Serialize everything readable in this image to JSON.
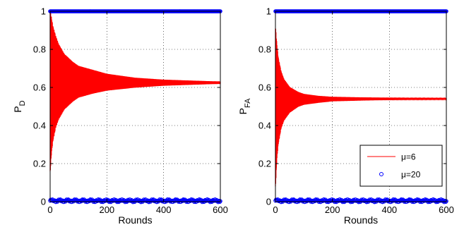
{
  "chart_data": [
    {
      "type": "line",
      "xlabel": "Rounds",
      "ylabel": "P",
      "ylabel_sub": "D",
      "xlim": [
        0,
        600
      ],
      "ylim": [
        0,
        1
      ],
      "xticks": [
        0,
        200,
        400,
        600
      ],
      "yticks": [
        0,
        0.2,
        0.4,
        0.6,
        0.8,
        1
      ],
      "ytick_labels": [
        "0",
        "0.2",
        "0.4",
        "0.6",
        "0.8",
        "1"
      ],
      "grid": true,
      "series": [
        {
          "name": "μ=6",
          "style": "line",
          "color": "#ff0000",
          "envelope": {
            "center": [
              [
                0,
                0.58
              ],
              [
                10,
                0.62
              ],
              [
                50,
                0.63
              ],
              [
                100,
                0.63
              ],
              [
                200,
                0.63
              ],
              [
                300,
                0.625
              ],
              [
                400,
                0.625
              ],
              [
                500,
                0.625
              ],
              [
                600,
                0.625
              ]
            ],
            "upper": [
              [
                0,
                1.0
              ],
              [
                5,
                0.95
              ],
              [
                10,
                0.91
              ],
              [
                20,
                0.86
              ],
              [
                30,
                0.82
              ],
              [
                50,
                0.77
              ],
              [
                80,
                0.73
              ],
              [
                100,
                0.71
              ],
              [
                150,
                0.69
              ],
              [
                200,
                0.67
              ],
              [
                300,
                0.65
              ],
              [
                400,
                0.64
              ],
              [
                500,
                0.635
              ],
              [
                600,
                0.63
              ]
            ],
            "lower": [
              [
                0,
                0.16
              ],
              [
                5,
                0.27
              ],
              [
                10,
                0.33
              ],
              [
                20,
                0.4
              ],
              [
                30,
                0.44
              ],
              [
                50,
                0.49
              ],
              [
                80,
                0.53
              ],
              [
                100,
                0.55
              ],
              [
                150,
                0.57
              ],
              [
                200,
                0.585
              ],
              [
                300,
                0.6
              ],
              [
                400,
                0.61
              ],
              [
                500,
                0.615
              ],
              [
                600,
                0.62
              ]
            ]
          }
        },
        {
          "name": "μ=20",
          "style": "markers",
          "color": "#0000ff",
          "levels": [
            1,
            0.005
          ]
        }
      ]
    },
    {
      "type": "line",
      "xlabel": "Rounds",
      "ylabel": "P",
      "ylabel_sub": "FA",
      "xlim": [
        0,
        600
      ],
      "ylim": [
        0,
        1
      ],
      "xticks": [
        0,
        200,
        400,
        600
      ],
      "yticks": [
        0,
        0.2,
        0.4,
        0.6,
        0.8,
        1
      ],
      "ytick_labels": [
        "0",
        "0.2",
        "0.4",
        "0.6",
        "0.8",
        "1"
      ],
      "grid": true,
      "legend": {
        "position": "bottom-right",
        "entries": [
          "μ=6",
          "μ=20"
        ]
      },
      "series": [
        {
          "name": "μ=6",
          "style": "line",
          "color": "#ff0000",
          "envelope": {
            "center": [
              [
                0,
                0.52
              ],
              [
                10,
                0.54
              ],
              [
                50,
                0.54
              ],
              [
                100,
                0.54
              ],
              [
                200,
                0.54
              ],
              [
                300,
                0.54
              ],
              [
                400,
                0.54
              ],
              [
                500,
                0.54
              ],
              [
                600,
                0.54
              ]
            ],
            "upper": [
              [
                0,
                0.91
              ],
              [
                5,
                0.82
              ],
              [
                10,
                0.75
              ],
              [
                20,
                0.68
              ],
              [
                30,
                0.64
              ],
              [
                50,
                0.6
              ],
              [
                80,
                0.575
              ],
              [
                100,
                0.565
              ],
              [
                150,
                0.555
              ],
              [
                200,
                0.55
              ],
              [
                300,
                0.547
              ],
              [
                400,
                0.545
              ],
              [
                600,
                0.543
              ]
            ],
            "lower": [
              [
                0,
                0.08
              ],
              [
                5,
                0.23
              ],
              [
                10,
                0.31
              ],
              [
                20,
                0.39
              ],
              [
                30,
                0.43
              ],
              [
                50,
                0.47
              ],
              [
                80,
                0.5
              ],
              [
                100,
                0.51
              ],
              [
                150,
                0.52
              ],
              [
                200,
                0.528
              ],
              [
                300,
                0.532
              ],
              [
                400,
                0.535
              ],
              [
                600,
                0.537
              ]
            ]
          }
        },
        {
          "name": "μ=20",
          "style": "markers",
          "color": "#0000ff",
          "levels": [
            1,
            0.005
          ]
        }
      ]
    }
  ]
}
